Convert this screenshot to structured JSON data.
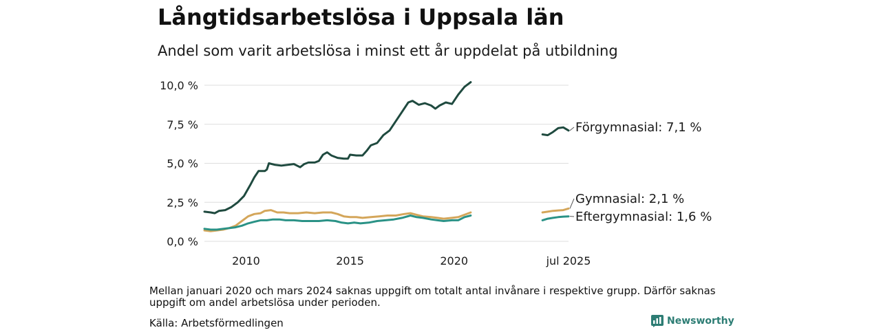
{
  "title": "Långtidsarbetslösa i Uppsala län",
  "subtitle": "Andel som varit arbetslösa i minst ett år uppdelat på utbildning",
  "note": "Mellan januari 2020 och mars 2024 saknas uppgift om totalt antal invånare i respektive grupp. Därför saknas uppgift om andel arbetslösa under perioden.",
  "source": "Källa: Arbetsförmedlingen",
  "brand": "Newsworthy",
  "chart_data": {
    "type": "line",
    "title": "Långtidsarbetslösa i Uppsala län",
    "subtitle": "Andel som varit arbetslösa i minst ett år uppdelat på utbildning",
    "ylabel": "",
    "xlabel": "",
    "ylim": [
      0,
      10.5
    ],
    "y_ticks": [
      0,
      2.5,
      5.0,
      7.5,
      10.0
    ],
    "y_tick_labels": [
      "0,0 %",
      "2,5 %",
      "5,0 %",
      "7,5 %",
      "10,0 %"
    ],
    "x_tick_values": [
      2010,
      2015,
      2020,
      2025.5
    ],
    "x_tick_labels": [
      "2010",
      "2015",
      "2020",
      "jul 2025"
    ],
    "grid": "horizontal",
    "legend": "direct labels at line ends",
    "series": [
      {
        "name": "Förgymnasial",
        "end_label": "Förgymnasial: 7,1 %",
        "color": "#1f4a3f",
        "segments": [
          [
            [
              2008.0,
              1.9
            ],
            [
              2008.3,
              1.85
            ],
            [
              2008.5,
              1.8
            ],
            [
              2008.7,
              1.95
            ],
            [
              2009.0,
              2.0
            ],
            [
              2009.3,
              2.2
            ],
            [
              2009.6,
              2.5
            ],
            [
              2009.9,
              2.9
            ],
            [
              2010.2,
              3.6
            ],
            [
              2010.4,
              4.1
            ],
            [
              2010.6,
              4.5
            ],
            [
              2010.9,
              4.5
            ],
            [
              2011.0,
              4.6
            ],
            [
              2011.1,
              5.0
            ],
            [
              2011.4,
              4.9
            ],
            [
              2011.7,
              4.85
            ],
            [
              2012.0,
              4.9
            ],
            [
              2012.3,
              4.95
            ],
            [
              2012.6,
              4.75
            ],
            [
              2012.8,
              4.95
            ],
            [
              2013.0,
              5.05
            ],
            [
              2013.3,
              5.05
            ],
            [
              2013.5,
              5.15
            ],
            [
              2013.7,
              5.55
            ],
            [
              2013.9,
              5.7
            ],
            [
              2014.1,
              5.5
            ],
            [
              2014.4,
              5.35
            ],
            [
              2014.7,
              5.3
            ],
            [
              2014.9,
              5.3
            ],
            [
              2015.0,
              5.55
            ],
            [
              2015.3,
              5.5
            ],
            [
              2015.6,
              5.5
            ],
            [
              2015.8,
              5.8
            ],
            [
              2016.0,
              6.15
            ],
            [
              2016.3,
              6.3
            ],
            [
              2016.6,
              6.8
            ],
            [
              2016.9,
              7.1
            ],
            [
              2017.2,
              7.7
            ],
            [
              2017.5,
              8.3
            ],
            [
              2017.8,
              8.9
            ],
            [
              2018.0,
              9.0
            ],
            [
              2018.3,
              8.75
            ],
            [
              2018.6,
              8.85
            ],
            [
              2018.9,
              8.7
            ],
            [
              2019.1,
              8.5
            ],
            [
              2019.3,
              8.7
            ],
            [
              2019.6,
              8.9
            ],
            [
              2019.9,
              8.8
            ],
            [
              2020.2,
              9.4
            ],
            [
              2020.5,
              9.9
            ],
            [
              2020.8,
              10.2
            ]
          ],
          [
            [
              2024.25,
              6.85
            ],
            [
              2024.5,
              6.8
            ],
            [
              2024.75,
              7.0
            ],
            [
              2025.0,
              7.25
            ],
            [
              2025.25,
              7.3
            ],
            [
              2025.5,
              7.1
            ]
          ]
        ]
      },
      {
        "name": "Gymnasial",
        "end_label": "Gymnasial: 2,1 %",
        "color": "#d4a65a",
        "segments": [
          [
            [
              2008.0,
              0.7
            ],
            [
              2008.3,
              0.65
            ],
            [
              2008.6,
              0.7
            ],
            [
              2008.9,
              0.75
            ],
            [
              2009.2,
              0.85
            ],
            [
              2009.5,
              1.0
            ],
            [
              2009.8,
              1.3
            ],
            [
              2010.1,
              1.6
            ],
            [
              2010.4,
              1.75
            ],
            [
              2010.7,
              1.8
            ],
            [
              2010.9,
              1.95
            ],
            [
              2011.2,
              2.0
            ],
            [
              2011.5,
              1.85
            ],
            [
              2011.8,
              1.85
            ],
            [
              2012.1,
              1.8
            ],
            [
              2012.5,
              1.8
            ],
            [
              2012.9,
              1.85
            ],
            [
              2013.3,
              1.8
            ],
            [
              2013.7,
              1.85
            ],
            [
              2014.1,
              1.85
            ],
            [
              2014.4,
              1.75
            ],
            [
              2014.7,
              1.6
            ],
            [
              2015.0,
              1.55
            ],
            [
              2015.3,
              1.55
            ],
            [
              2015.6,
              1.5
            ],
            [
              2016.0,
              1.55
            ],
            [
              2016.4,
              1.6
            ],
            [
              2016.8,
              1.65
            ],
            [
              2017.2,
              1.65
            ],
            [
              2017.6,
              1.75
            ],
            [
              2017.9,
              1.8
            ],
            [
              2018.2,
              1.7
            ],
            [
              2018.5,
              1.6
            ],
            [
              2018.9,
              1.55
            ],
            [
              2019.2,
              1.5
            ],
            [
              2019.5,
              1.45
            ],
            [
              2019.9,
              1.5
            ],
            [
              2020.2,
              1.55
            ],
            [
              2020.5,
              1.7
            ],
            [
              2020.8,
              1.85
            ]
          ],
          [
            [
              2024.25,
              1.85
            ],
            [
              2024.5,
              1.9
            ],
            [
              2024.75,
              1.95
            ],
            [
              2025.0,
              1.98
            ],
            [
              2025.25,
              2.0
            ],
            [
              2025.5,
              2.1
            ]
          ]
        ]
      },
      {
        "name": "Eftergymnasial",
        "end_label": "Eftergymnasial: 1,6 %",
        "color": "#2a9286",
        "segments": [
          [
            [
              2008.0,
              0.8
            ],
            [
              2008.3,
              0.75
            ],
            [
              2008.6,
              0.75
            ],
            [
              2008.9,
              0.8
            ],
            [
              2009.2,
              0.85
            ],
            [
              2009.5,
              0.9
            ],
            [
              2009.8,
              1.0
            ],
            [
              2010.1,
              1.15
            ],
            [
              2010.4,
              1.25
            ],
            [
              2010.7,
              1.35
            ],
            [
              2011.0,
              1.35
            ],
            [
              2011.3,
              1.4
            ],
            [
              2011.6,
              1.4
            ],
            [
              2011.9,
              1.35
            ],
            [
              2012.3,
              1.35
            ],
            [
              2012.7,
              1.3
            ],
            [
              2013.1,
              1.3
            ],
            [
              2013.5,
              1.3
            ],
            [
              2013.9,
              1.35
            ],
            [
              2014.3,
              1.3
            ],
            [
              2014.6,
              1.2
            ],
            [
              2014.9,
              1.15
            ],
            [
              2015.2,
              1.2
            ],
            [
              2015.5,
              1.15
            ],
            [
              2015.9,
              1.2
            ],
            [
              2016.3,
              1.3
            ],
            [
              2016.7,
              1.35
            ],
            [
              2017.1,
              1.4
            ],
            [
              2017.5,
              1.5
            ],
            [
              2017.9,
              1.65
            ],
            [
              2018.2,
              1.55
            ],
            [
              2018.5,
              1.5
            ],
            [
              2018.9,
              1.4
            ],
            [
              2019.2,
              1.35
            ],
            [
              2019.5,
              1.3
            ],
            [
              2019.9,
              1.35
            ],
            [
              2020.2,
              1.35
            ],
            [
              2020.5,
              1.55
            ],
            [
              2020.8,
              1.65
            ]
          ],
          [
            [
              2024.25,
              1.35
            ],
            [
              2024.5,
              1.45
            ],
            [
              2024.75,
              1.5
            ],
            [
              2025.0,
              1.55
            ],
            [
              2025.25,
              1.58
            ],
            [
              2025.5,
              1.6
            ]
          ]
        ]
      }
    ]
  }
}
